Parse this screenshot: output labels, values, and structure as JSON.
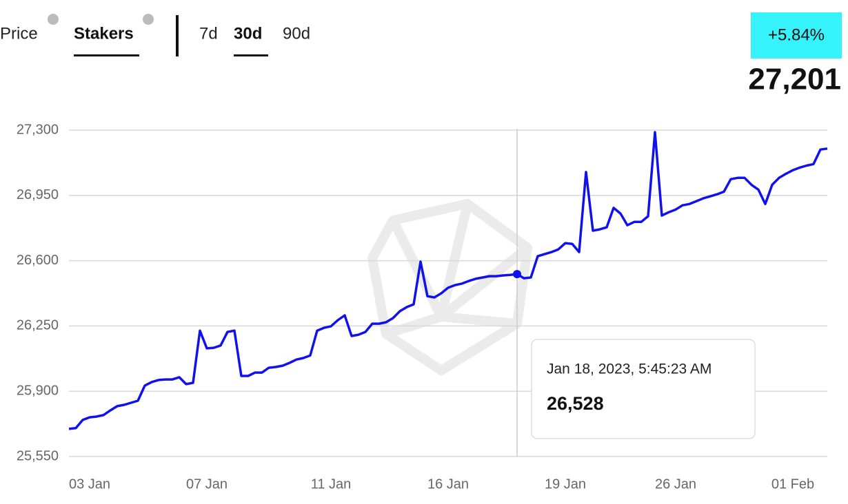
{
  "header": {
    "tabs": [
      "Price",
      "Stakers"
    ],
    "active_tab": "Stakers",
    "ranges": [
      "7d",
      "30d",
      "90d"
    ],
    "active_range": "30d",
    "change": "+5.84%",
    "current": "27,201"
  },
  "chart_data": {
    "type": "line",
    "color": "#1111ee",
    "categories": [
      null,
      null,
      null,
      "03 Jan",
      null,
      null,
      null,
      null,
      null,
      null,
      null,
      null,
      null,
      null,
      null,
      null,
      null,
      null,
      null,
      null,
      "07 Jan",
      null,
      null,
      null,
      null,
      null,
      null,
      null,
      null,
      null,
      null,
      null,
      null,
      null,
      null,
      null,
      null,
      null,
      "11 Jan",
      null,
      null,
      null,
      null,
      null,
      null,
      null,
      null,
      null,
      null,
      null,
      null,
      null,
      null,
      null,
      null,
      "16 Jan",
      null,
      null,
      null,
      null,
      null,
      null,
      null,
      null,
      null,
      null,
      null,
      null,
      null,
      null,
      null,
      null,
      "19 Jan",
      null,
      null,
      null,
      null,
      null,
      null,
      null,
      null,
      null,
      null,
      null,
      null,
      null,
      null,
      null,
      "26 Jan",
      null,
      null,
      null,
      null,
      null,
      null,
      null,
      null,
      null,
      null,
      null,
      null,
      null,
      null,
      null,
      null,
      "01 Feb",
      null,
      null,
      null,
      null,
      null
    ],
    "values": [
      25698,
      25702,
      25746,
      25760,
      25764,
      25772,
      25797,
      25820,
      25827,
      25838,
      25849,
      25930,
      25949,
      25960,
      25963,
      25963,
      25975,
      25938,
      25945,
      26225,
      26130,
      26133,
      26145,
      26218,
      26225,
      25982,
      25982,
      26000,
      26000,
      26026,
      26030,
      26037,
      26052,
      26070,
      26078,
      26092,
      26225,
      26240,
      26248,
      26281,
      26307,
      26196,
      26203,
      26218,
      26262,
      26262,
      26270,
      26292,
      26329,
      26351,
      26366,
      26595,
      26410,
      26403,
      26425,
      26455,
      26469,
      26477,
      26491,
      26503,
      26510,
      26517,
      26517,
      26521,
      26524,
      26528,
      26506,
      26510,
      26624,
      26635,
      26646,
      26661,
      26694,
      26690,
      26646,
      27075,
      26761,
      26768,
      26779,
      26883,
      26853,
      26790,
      26808,
      26808,
      26838,
      27289,
      26842,
      26860,
      26874,
      26897,
      26904,
      26919,
      26934,
      26945,
      26956,
      26970,
      27037,
      27044,
      27044,
      27007,
      26981,
      26904,
      27007,
      27044,
      27066,
      27085,
      27099,
      27110,
      27118,
      27196,
      27201
    ],
    "ylim": [
      25550,
      27300
    ],
    "yticks": [
      {
        "value": 25550,
        "label": "25,550"
      },
      {
        "value": 25900,
        "label": "25,900"
      },
      {
        "value": 26250,
        "label": "26,250"
      },
      {
        "value": 26600,
        "label": "26,600"
      },
      {
        "value": 26950,
        "label": "26,950"
      },
      {
        "value": 27300,
        "label": "27,300"
      }
    ],
    "grid": true,
    "tooltip": {
      "label": "Jan 18, 2023, 5:45:23 AM",
      "value": 26528,
      "value_label": "26,528"
    }
  }
}
